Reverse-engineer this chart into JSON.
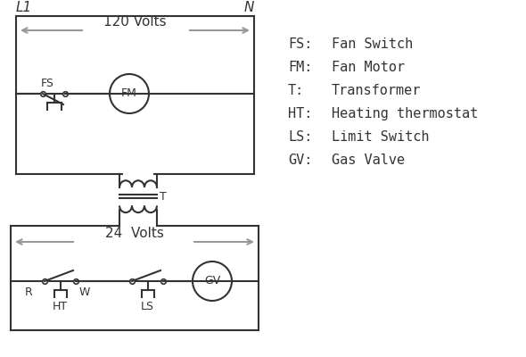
{
  "bg_color": "#ffffff",
  "line_color": "#333333",
  "arrow_color": "#999999",
  "legend": [
    [
      "FS:",
      "Fan Switch"
    ],
    [
      "FM:",
      "Fan Motor"
    ],
    [
      "T:",
      "Transformer"
    ],
    [
      "HT:",
      "Heating thermostat"
    ],
    [
      "LS:",
      "Limit Switch"
    ],
    [
      "GV:",
      "Gas Valve"
    ]
  ],
  "L1_label": "L1",
  "N_label": "N",
  "v120_label": "120 Volts",
  "v24_label": "24  Volts"
}
